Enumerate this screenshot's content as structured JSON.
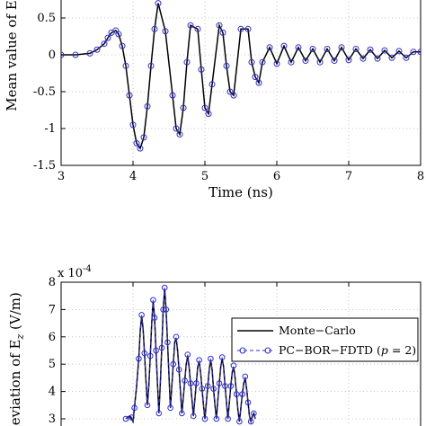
{
  "chart_data": [
    {
      "type": "line",
      "xlabel": "Time (ns)",
      "ylabel": "Mean value of E",
      "xlim": [
        3,
        8
      ],
      "ylim": [
        -1.5,
        0.5
      ],
      "x_ticks": [
        "3",
        "4",
        "5",
        "6",
        "7",
        "8"
      ],
      "y_ticks": [
        "-1.5",
        "-1",
        "-0.5",
        "0",
        "0.5"
      ],
      "grid": true,
      "series": [
        {
          "name": "Monte-Carlo",
          "color": "#000000",
          "x": [
            3.0,
            3.2,
            3.4,
            3.5,
            3.6,
            3.65,
            3.7,
            3.76,
            3.8,
            3.85,
            3.9,
            3.95,
            4.0,
            4.05,
            4.1,
            4.15,
            4.2,
            4.25,
            4.3,
            4.35,
            4.45,
            4.55,
            4.6,
            4.65,
            4.7,
            4.75,
            4.8,
            4.9,
            4.95,
            5.0,
            5.05,
            5.1,
            5.2,
            5.25,
            5.3,
            5.35,
            5.4,
            5.5,
            5.6,
            5.65,
            5.7,
            5.75,
            5.8,
            5.9,
            6.0,
            6.1,
            6.2,
            6.3,
            6.4,
            6.5,
            6.6,
            6.7,
            6.8,
            6.9,
            7.0,
            7.1,
            7.2,
            7.3,
            7.4,
            7.5,
            7.6,
            7.7,
            7.8,
            7.9,
            8.0
          ],
          "y": [
            0.0,
            0.0,
            0.02,
            0.07,
            0.15,
            0.23,
            0.3,
            0.33,
            0.28,
            0.12,
            -0.15,
            -0.55,
            -0.95,
            -1.2,
            -1.27,
            -1.12,
            -0.7,
            -0.15,
            0.35,
            0.7,
            0.32,
            -0.55,
            -1.0,
            -1.08,
            -0.72,
            -0.1,
            0.4,
            0.35,
            -0.2,
            -0.72,
            -0.8,
            -0.4,
            0.4,
            0.3,
            -0.15,
            -0.5,
            -0.55,
            0.35,
            0.35,
            -0.1,
            -0.3,
            -0.38,
            -0.1,
            0.1,
            -0.12,
            0.12,
            -0.1,
            0.1,
            -0.08,
            0.08,
            -0.1,
            0.08,
            -0.08,
            0.1,
            -0.07,
            0.08,
            -0.05,
            0.07,
            -0.05,
            0.06,
            -0.04,
            0.05,
            -0.04,
            0.04,
            0.04
          ]
        },
        {
          "name": "PC-BOR-FDTD (p = 2)",
          "color": "#2f2fd0",
          "x": [
            3.0,
            3.2,
            3.4,
            3.5,
            3.6,
            3.65,
            3.7,
            3.76,
            3.8,
            3.85,
            3.9,
            3.95,
            4.0,
            4.05,
            4.1,
            4.15,
            4.2,
            4.25,
            4.3,
            4.35,
            4.45,
            4.55,
            4.6,
            4.65,
            4.7,
            4.75,
            4.8,
            4.9,
            4.95,
            5.0,
            5.05,
            5.1,
            5.2,
            5.25,
            5.3,
            5.35,
            5.4,
            5.5,
            5.6,
            5.65,
            5.7,
            5.75,
            5.8,
            5.9,
            6.0,
            6.1,
            6.2,
            6.3,
            6.4,
            6.5,
            6.6,
            6.7,
            6.8,
            6.9,
            7.0,
            7.1,
            7.2,
            7.3,
            7.4,
            7.5,
            7.6,
            7.7,
            7.8,
            7.9,
            8.0
          ],
          "y": [
            0.0,
            0.0,
            0.02,
            0.07,
            0.15,
            0.23,
            0.3,
            0.33,
            0.28,
            0.12,
            -0.15,
            -0.55,
            -0.95,
            -1.2,
            -1.27,
            -1.12,
            -0.7,
            -0.15,
            0.35,
            0.7,
            0.32,
            -0.55,
            -1.0,
            -1.08,
            -0.72,
            -0.1,
            0.4,
            0.35,
            -0.2,
            -0.72,
            -0.8,
            -0.4,
            0.4,
            0.3,
            -0.15,
            -0.5,
            -0.55,
            0.35,
            0.35,
            -0.1,
            -0.3,
            -0.38,
            -0.1,
            0.1,
            -0.12,
            0.12,
            -0.1,
            0.1,
            -0.08,
            0.08,
            -0.1,
            0.08,
            -0.08,
            0.1,
            -0.07,
            0.08,
            -0.05,
            0.07,
            -0.05,
            0.06,
            -0.04,
            0.05,
            -0.04,
            0.04,
            0.04
          ]
        }
      ]
    },
    {
      "type": "line",
      "xlabel": "",
      "ylabel": "deviation of E",
      "ylabel_subscript": "z",
      "ylabel_unit": "(V/m)",
      "exponent_label": "x 10",
      "exponent_power": "-4",
      "xlim": [
        3,
        8
      ],
      "ylim": [
        3,
        8
      ],
      "y_ticks": [
        "3",
        "4",
        "5",
        "6",
        "7",
        "8"
      ],
      "grid": true,
      "legend_position": "top-right",
      "legend": [
        "Monte−Carlo",
        "PC−BOR−FDTD (",
        "p",
        " = 2)"
      ],
      "series": [
        {
          "name": "Monte−Carlo",
          "color": "#000000",
          "x": [
            3.9,
            3.95,
            3.98,
            4.0,
            4.02,
            4.05,
            4.08,
            4.1,
            4.12,
            4.14,
            4.16,
            4.18,
            4.2,
            4.22,
            4.24,
            4.26,
            4.28,
            4.3,
            4.32,
            4.34,
            4.36,
            4.38,
            4.4,
            4.42,
            4.44,
            4.46,
            4.48,
            4.5,
            4.52,
            4.54,
            4.56,
            4.58,
            4.6,
            4.62,
            4.64,
            4.66,
            4.68,
            4.7,
            4.72,
            4.74,
            4.76,
            4.78,
            4.8,
            4.82,
            4.84,
            4.86,
            4.88,
            4.9,
            4.92,
            4.94,
            4.96,
            4.98,
            5.0,
            5.02,
            5.04,
            5.06,
            5.08,
            5.1,
            5.12,
            5.14,
            5.16,
            5.18,
            5.2,
            5.22,
            5.24,
            5.26,
            5.28,
            5.3,
            5.32,
            5.34,
            5.36,
            5.38,
            5.4,
            5.42,
            5.44,
            5.46,
            5.48,
            5.5,
            5.52,
            5.54,
            5.56,
            5.58,
            5.6,
            5.62,
            5.64,
            5.66,
            5.68,
            5.7
          ],
          "y": [
            3.0,
            3.1,
            3.0,
            2.9,
            3.4,
            4.2,
            5.2,
            6.2,
            6.75,
            6.3,
            5.4,
            4.4,
            3.5,
            4.2,
            5.3,
            6.5,
            7.3,
            6.7,
            5.5,
            4.3,
            3.2,
            4.3,
            5.6,
            7.0,
            7.75,
            7.0,
            5.8,
            4.6,
            3.4,
            4.2,
            5.0,
            5.8,
            5.95,
            5.5,
            4.8,
            4.0,
            3.2,
            3.8,
            4.4,
            5.0,
            5.3,
            4.9,
            4.3,
            3.7,
            3.1,
            3.7,
            4.3,
            4.9,
            5.1,
            4.7,
            4.1,
            3.5,
            3.0,
            3.6,
            4.2,
            4.8,
            5.15,
            4.8,
            4.1,
            3.5,
            3.0,
            3.7,
            4.3,
            4.9,
            5.2,
            4.9,
            4.2,
            3.6,
            3.0,
            3.6,
            4.2,
            4.7,
            4.9,
            4.5,
            3.9,
            3.3,
            2.9,
            3.4,
            3.9,
            4.3,
            4.5,
            4.1,
            3.6,
            3.1,
            2.9,
            3.1,
            3.2,
            3.0
          ]
        },
        {
          "name": "PC−BOR−FDTD (p = 2)",
          "color": "#2f2fd0",
          "x": [
            3.9,
            3.95,
            3.98,
            4.0,
            4.02,
            4.05,
            4.08,
            4.1,
            4.12,
            4.14,
            4.16,
            4.18,
            4.2,
            4.22,
            4.24,
            4.26,
            4.28,
            4.3,
            4.32,
            4.34,
            4.36,
            4.38,
            4.4,
            4.42,
            4.44,
            4.46,
            4.48,
            4.5,
            4.52,
            4.54,
            4.56,
            4.58,
            4.6,
            4.62,
            4.64,
            4.66,
            4.68,
            4.7,
            4.72,
            4.74,
            4.76,
            4.78,
            4.8,
            4.82,
            4.84,
            4.86,
            4.88,
            4.9,
            4.92,
            4.94,
            4.96,
            4.98,
            5.0,
            5.02,
            5.04,
            5.06,
            5.08,
            5.1,
            5.12,
            5.14,
            5.16,
            5.18,
            5.2,
            5.22,
            5.24,
            5.26,
            5.28,
            5.3,
            5.32,
            5.34,
            5.36,
            5.38,
            5.4,
            5.42,
            5.44,
            5.46,
            5.48,
            5.5,
            5.52,
            5.54,
            5.56,
            5.58,
            5.6,
            5.62,
            5.64,
            5.66,
            5.68,
            5.7
          ],
          "y": [
            3.0,
            3.15,
            3.05,
            2.9,
            3.4,
            4.2,
            5.2,
            6.2,
            6.8,
            6.3,
            5.4,
            4.4,
            3.5,
            4.2,
            5.3,
            6.5,
            7.35,
            6.7,
            5.5,
            4.3,
            3.2,
            4.3,
            5.6,
            7.0,
            7.8,
            7.0,
            5.8,
            4.6,
            3.4,
            4.2,
            5.0,
            5.8,
            6.0,
            5.5,
            4.8,
            4.0,
            3.2,
            3.8,
            4.4,
            5.0,
            5.35,
            4.9,
            4.3,
            3.7,
            3.1,
            3.7,
            4.3,
            4.9,
            5.15,
            4.7,
            4.1,
            3.5,
            3.0,
            3.6,
            4.2,
            4.8,
            5.2,
            4.8,
            4.1,
            3.5,
            3.0,
            3.7,
            4.3,
            4.9,
            5.25,
            4.9,
            4.2,
            3.6,
            3.0,
            3.6,
            4.2,
            4.7,
            4.95,
            4.5,
            3.9,
            3.3,
            2.9,
            3.4,
            3.9,
            4.3,
            4.55,
            4.1,
            3.6,
            3.1,
            2.9,
            3.1,
            3.2,
            3.0
          ]
        }
      ]
    }
  ]
}
